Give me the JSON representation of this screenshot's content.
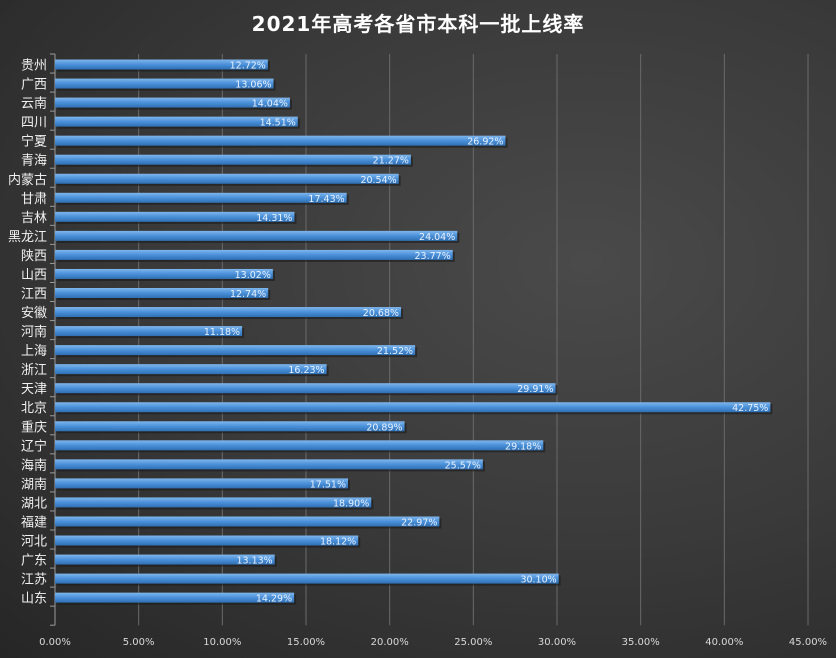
{
  "chart_data": {
    "type": "bar",
    "orientation": "horizontal",
    "title": "2021年高考各省市本科一批上线率",
    "categories": [
      "贵州",
      "广西",
      "云南",
      "四川",
      "宁夏",
      "青海",
      "内蒙古",
      "甘肃",
      "吉林",
      "黑龙江",
      "陕西",
      "山西",
      "江西",
      "安徽",
      "河南",
      "上海",
      "浙江",
      "天津",
      "北京",
      "重庆",
      "辽宁",
      "海南",
      "湖南",
      "湖北",
      "福建",
      "河北",
      "广东",
      "江苏",
      "山东"
    ],
    "values": [
      12.72,
      13.06,
      14.04,
      14.51,
      26.92,
      21.27,
      20.54,
      17.43,
      14.31,
      24.04,
      23.77,
      13.02,
      12.74,
      20.68,
      11.18,
      21.52,
      16.23,
      29.91,
      42.75,
      20.89,
      29.18,
      25.57,
      17.51,
      18.9,
      22.97,
      18.12,
      13.13,
      30.1,
      14.29
    ],
    "data_labels": [
      "12.72%",
      "13.06%",
      "14.04%",
      "14.51%",
      "26.92%",
      "21.27%",
      "20.54%",
      "17.43%",
      "14.31%",
      "24.04%",
      "23.77%",
      "13.02%",
      "12.74%",
      "20.68%",
      "11.18%",
      "21.52%",
      "16.23%",
      "29.91%",
      "42.75%",
      "20.89%",
      "29.18%",
      "25.57%",
      "17.51%",
      "18.90%",
      "22.97%",
      "18.12%",
      "13.13%",
      "30.10%",
      "14.29%"
    ],
    "x_ticks": [
      "0.00%",
      "5.00%",
      "10.00%",
      "15.00%",
      "20.00%",
      "25.00%",
      "30.00%",
      "35.00%",
      "40.00%",
      "45.00%"
    ],
    "xlim": [
      0,
      45
    ],
    "xlabel": "",
    "ylabel": "",
    "grid": "vertical",
    "legend": "none",
    "bar_color": "#4a90d9",
    "background_color": "#3a3a3a"
  }
}
